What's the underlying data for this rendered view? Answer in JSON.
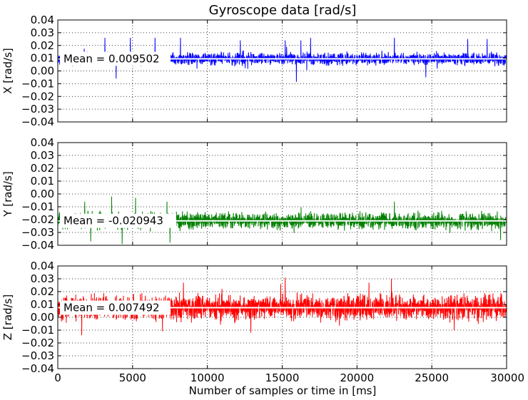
{
  "chart_data": {
    "type": "line",
    "title": "Gyroscope data [rad/s]",
    "xlabel": "Number of samples or time in [ms]",
    "xlim": [
      0,
      30000
    ],
    "x_ticks": [
      0,
      5000,
      10000,
      15000,
      20000,
      25000,
      30000
    ],
    "x_tick_labels": [
      "0",
      "5000",
      "10000",
      "15000",
      "20000",
      "25000",
      "30000"
    ],
    "grid": true,
    "subplots": [
      {
        "ylabel": "X [rad/s]",
        "ylim": [
          -0.04,
          0.04
        ],
        "y_ticks": [
          0.04,
          0.03,
          0.02,
          0.01,
          0.0,
          -0.01,
          -0.02,
          -0.03,
          -0.04
        ],
        "y_tick_labels": [
          "0.04",
          "0.03",
          "0.02",
          "0.01",
          "0.00",
          "−0.01",
          "−0.02",
          "−0.03",
          "−0.04"
        ],
        "color": "#0000ff",
        "mean": 0.009502,
        "mean_label": "Mean = 0.009502",
        "noise": {
          "amplitude": 0.0042,
          "spike_prob": 0.01,
          "spike_extra": 0.006,
          "seed": 11
        },
        "notable_peaks": [
          {
            "x": 3150,
            "y": 0.026
          },
          {
            "x": 4850,
            "y": 0.026
          },
          {
            "x": 6500,
            "y": 0.026
          },
          {
            "x": 8200,
            "y": 0.026
          },
          {
            "x": 12200,
            "y": 0.024
          },
          {
            "x": 15200,
            "y": 0.024
          },
          {
            "x": 16250,
            "y": 0.024
          },
          {
            "x": 16900,
            "y": 0.026
          },
          {
            "x": 22500,
            "y": 0.026
          },
          {
            "x": 27400,
            "y": 0.025
          },
          {
            "x": 28700,
            "y": 0.025
          },
          {
            "x": 15950,
            "y": -0.0085
          },
          {
            "x": 3900,
            "y": -0.006
          },
          {
            "x": 24600,
            "y": -0.005
          }
        ]
      },
      {
        "ylabel": "Y [rad/s]",
        "ylim": [
          -0.04,
          0.04
        ],
        "y_ticks": [
          0.04,
          0.03,
          0.02,
          0.01,
          0.0,
          -0.01,
          -0.02,
          -0.03,
          -0.04
        ],
        "y_tick_labels": [
          "0.04",
          "0.03",
          "0.02",
          "0.01",
          "0.00",
          "−0.01",
          "−0.02",
          "−0.03",
          "−0.04"
        ],
        "color": "#008000",
        "mean": -0.020943,
        "mean_label": "Mean = -0.020943",
        "noise": {
          "amplitude": 0.0055,
          "spike_prob": 0.012,
          "spike_extra": 0.007,
          "seed": 23
        },
        "notable_peaks": [
          {
            "x": 3600,
            "y": -0.002
          },
          {
            "x": 5200,
            "y": -0.003
          },
          {
            "x": 1800,
            "y": -0.006
          },
          {
            "x": 7300,
            "y": -0.006
          },
          {
            "x": 22500,
            "y": -0.006
          },
          {
            "x": 2200,
            "y": -0.037
          },
          {
            "x": 4300,
            "y": -0.039
          },
          {
            "x": 7500,
            "y": -0.038
          },
          {
            "x": 29600,
            "y": -0.036
          }
        ]
      },
      {
        "ylabel": "Z [rad/s]",
        "ylim": [
          -0.04,
          0.04
        ],
        "y_ticks": [
          0.04,
          0.03,
          0.02,
          0.01,
          0.0,
          -0.01,
          -0.02,
          -0.03,
          -0.04
        ],
        "y_tick_labels": [
          "0.04",
          "0.03",
          "0.02",
          "0.01",
          "0.00",
          "−0.01",
          "−0.02",
          "−0.03",
          "−0.04"
        ],
        "color": "#ff0000",
        "mean": 0.007492,
        "mean_label": "Mean = 0.007492",
        "noise": {
          "amplitude": 0.0085,
          "spike_prob": 0.012,
          "spike_extra": 0.008,
          "seed": 37
        },
        "notable_peaks": [
          {
            "x": 15200,
            "y": 0.031
          },
          {
            "x": 22300,
            "y": 0.03
          },
          {
            "x": 8400,
            "y": 0.027
          },
          {
            "x": 14900,
            "y": 0.026
          },
          {
            "x": 20800,
            "y": 0.027
          },
          {
            "x": 1600,
            "y": -0.014
          },
          {
            "x": 7000,
            "y": -0.011
          },
          {
            "x": 12900,
            "y": -0.012
          },
          {
            "x": 26500,
            "y": -0.01
          }
        ]
      }
    ]
  }
}
